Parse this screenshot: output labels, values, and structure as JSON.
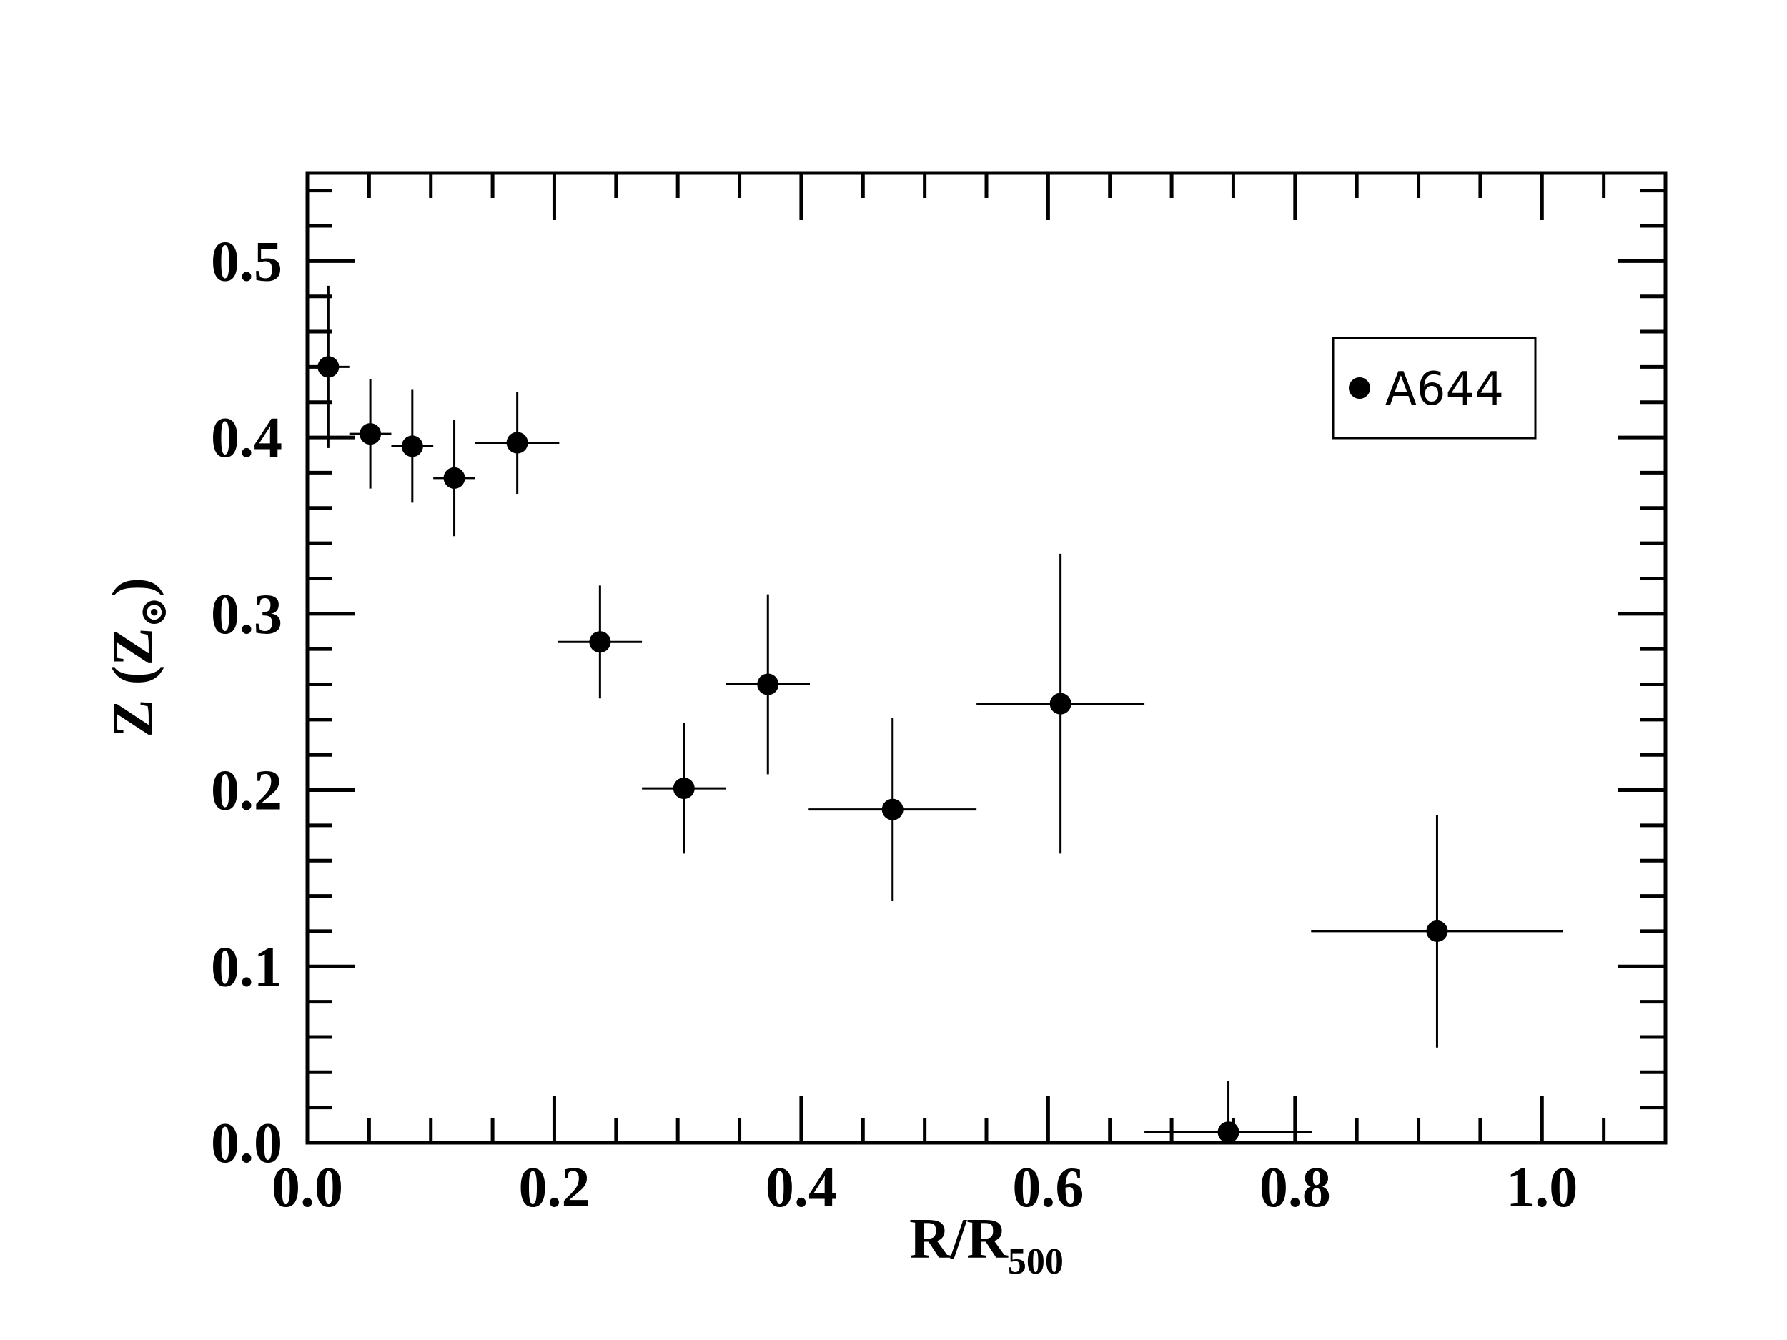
{
  "chart_data": {
    "type": "scatter",
    "xlim": [
      0.0,
      1.1
    ],
    "ylim": [
      0.0,
      0.55
    ],
    "x_ticks": [
      0.0,
      0.2,
      0.4,
      0.6,
      0.8,
      1.0
    ],
    "x_tick_labels": [
      "0.0",
      "0.2",
      "0.4",
      "0.6",
      "0.8",
      "1.0"
    ],
    "y_ticks": [
      0.0,
      0.1,
      0.2,
      0.3,
      0.4,
      0.5
    ],
    "y_tick_labels": [
      "0.0",
      "0.1",
      "0.2",
      "0.3",
      "0.4",
      "0.5"
    ],
    "xlabel": {
      "main": "R/R",
      "sub": "500"
    },
    "ylabel": {
      "main": "Z (Z",
      "sub": "⊙",
      "close": ")"
    },
    "grid": false,
    "legend_position": "top-right",
    "series": [
      {
        "name": "A644",
        "color": "#000000",
        "marker": "filled-circle",
        "points": [
          {
            "x": 0.017,
            "y": 0.44,
            "xerr": 0.017,
            "yerr_low": 0.046,
            "yerr_high": 0.046
          },
          {
            "x": 0.051,
            "y": 0.402,
            "xerr": 0.017,
            "yerr_low": 0.031,
            "yerr_high": 0.031
          },
          {
            "x": 0.085,
            "y": 0.395,
            "xerr": 0.017,
            "yerr_low": 0.032,
            "yerr_high": 0.032
          },
          {
            "x": 0.119,
            "y": 0.377,
            "xerr": 0.017,
            "yerr_low": 0.033,
            "yerr_high": 0.033
          },
          {
            "x": 0.17,
            "y": 0.397,
            "xerr": 0.034,
            "yerr_low": 0.029,
            "yerr_high": 0.029
          },
          {
            "x": 0.237,
            "y": 0.284,
            "xerr": 0.034,
            "yerr_low": 0.032,
            "yerr_high": 0.032
          },
          {
            "x": 0.305,
            "y": 0.201,
            "xerr": 0.034,
            "yerr_low": 0.037,
            "yerr_high": 0.037
          },
          {
            "x": 0.373,
            "y": 0.26,
            "xerr": 0.034,
            "yerr_low": 0.051,
            "yerr_high": 0.051
          },
          {
            "x": 0.474,
            "y": 0.189,
            "xerr": 0.068,
            "yerr_low": 0.052,
            "yerr_high": 0.052
          },
          {
            "x": 0.61,
            "y": 0.249,
            "xerr": 0.068,
            "yerr_low": 0.085,
            "yerr_high": 0.085
          },
          {
            "x": 0.746,
            "y": 0.006,
            "xerr": 0.068,
            "yerr_low": 0.0,
            "yerr_high": 0.029
          },
          {
            "x": 0.915,
            "y": 0.12,
            "xerr": 0.102,
            "yerr_low": 0.066,
            "yerr_high": 0.066
          }
        ]
      }
    ]
  }
}
